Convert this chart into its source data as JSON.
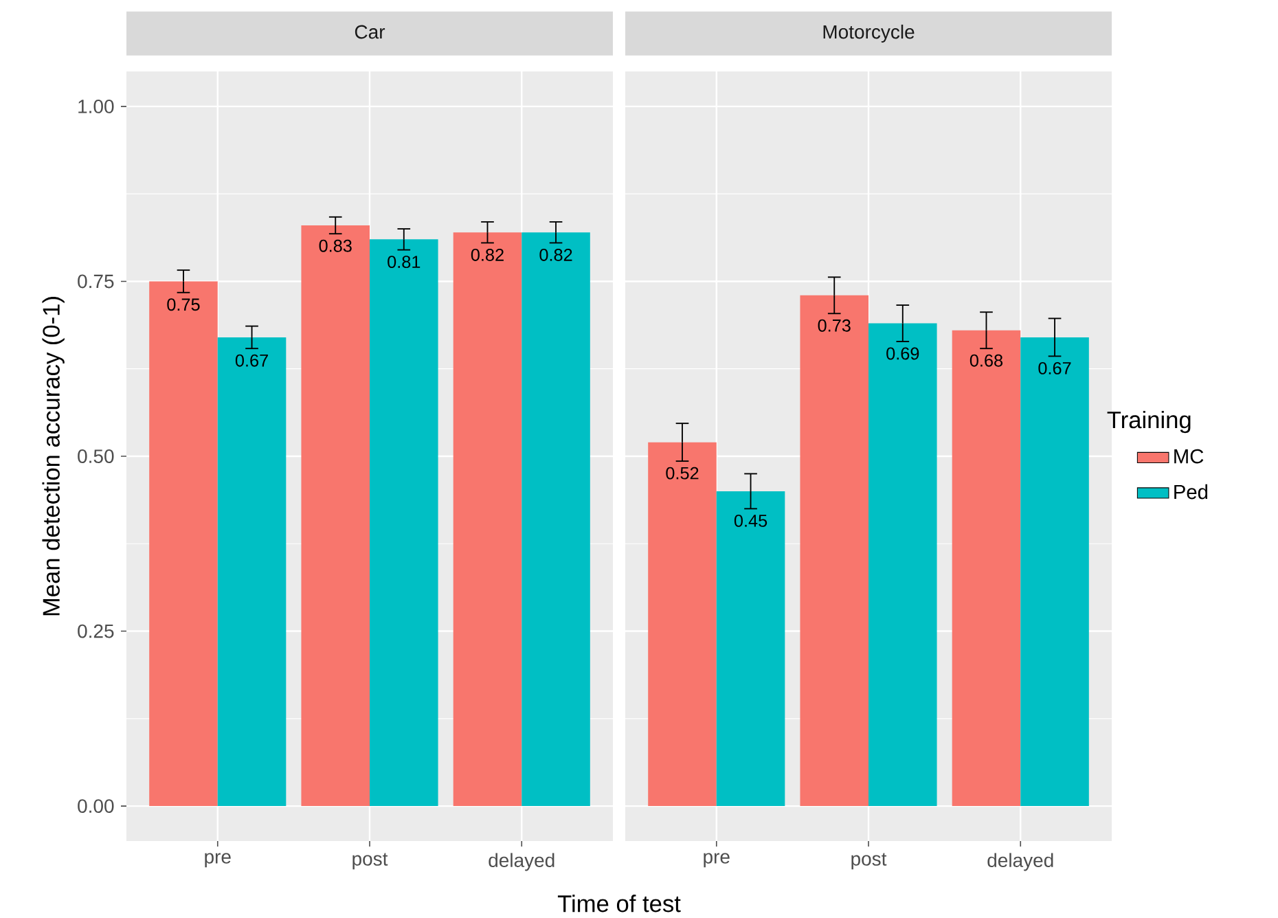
{
  "chart_data": [
    {
      "type": "bar",
      "title": "Car",
      "xlabel": "Time of test",
      "ylabel": "Mean detection accuracy (0-1)",
      "categories": [
        "pre",
        "post",
        "delayed"
      ],
      "series": [
        {
          "color": "#f8766d",
          "values": [
            0.75,
            0.83,
            0.82
          ],
          "errors": [
            0.016,
            0.012,
            0.015
          ]
        },
        {
          "color": "#00bfc4",
          "values": [
            0.67,
            0.81,
            0.82
          ],
          "errors": [
            0.016,
            0.015,
            0.015
          ]
        }
      ],
      "ylim": [
        -0.05,
        1.05
      ],
      "yticks": [
        {
          "value": 0,
          "label": "0.00"
        },
        0.25,
        {
          "value": 0.5,
          "label": "0.50"
        },
        0.75,
        {
          "value": 1,
          "label": "1.00"
        }
      ],
      "grid": true,
      "data_labels": true
    },
    {
      "type": "bar",
      "title": "Motorcycle",
      "categories": [
        "pre",
        "post",
        "delayed"
      ],
      "series": [
        {
          "name": "MC",
          "color": "#f8766d",
          "values": [
            0.52,
            0.73,
            0.68
          ],
          "errors": [
            0.027,
            0.026,
            0.026
          ]
        },
        {
          "name": "Ped",
          "color": "#00bfc4",
          "values": [
            0.45,
            0.69,
            0.67
          ],
          "errors": [
            0.025,
            0.026,
            0.027
          ]
        }
      ],
      "ylim": [
        -0.05,
        1.05
      ],
      "yticks": [
        0,
        0.25,
        0.5,
        0.75,
        1
      ],
      "grid": true,
      "data_labels": true,
      "tick_labels": "x",
      "legend": "right",
      "legend_title": "Training"
    }
  ]
}
